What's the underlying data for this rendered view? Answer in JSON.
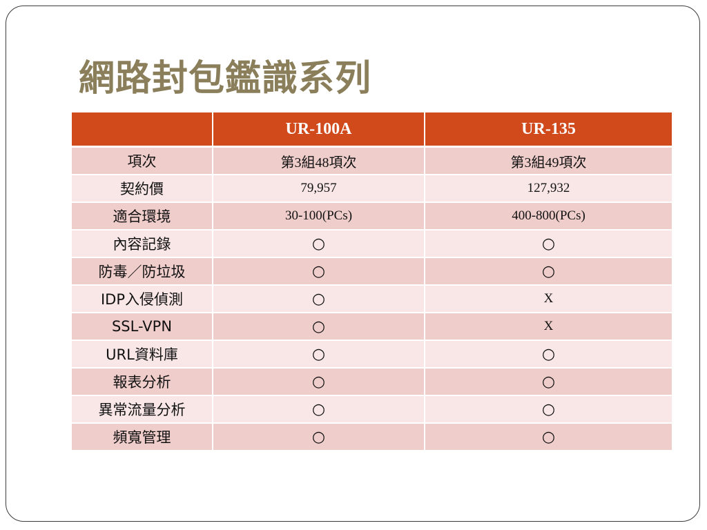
{
  "slide": {
    "title": "網路封包鑑識系列"
  },
  "table": {
    "headers": [
      "",
      "UR-100A",
      "UR-135"
    ],
    "rows": [
      {
        "label": "項次",
        "ur100a": "第3組48項次",
        "ur135": "第3組49項次"
      },
      {
        "label": "契約價",
        "ur100a": "79,957",
        "ur135": "127,932"
      },
      {
        "label": "適合環境",
        "ur100a": "30-100(PCs)",
        "ur135": "400-800(PCs)"
      },
      {
        "label": "內容記錄",
        "ur100a": "○",
        "ur135": "○"
      },
      {
        "label": "防毒／防垃圾",
        "ur100a": "○",
        "ur135": "○"
      },
      {
        "label": "IDP入侵偵測",
        "ur100a": "○",
        "ur135": "X"
      },
      {
        "label": "SSL-VPN",
        "ur100a": "○",
        "ur135": "X"
      },
      {
        "label": "URL資料庫",
        "ur100a": "○",
        "ur135": "○"
      },
      {
        "label": "報表分析",
        "ur100a": "○",
        "ur135": "○"
      },
      {
        "label": "異常流量分析",
        "ur100a": "○",
        "ur135": "○"
      },
      {
        "label": "頻寬管理",
        "ur100a": "○",
        "ur135": "○"
      }
    ]
  },
  "colors": {
    "title": "#8a7f5a",
    "header_bg": "#d04a1c",
    "row_odd": "#efcdcb",
    "row_even": "#f8e7e6"
  }
}
